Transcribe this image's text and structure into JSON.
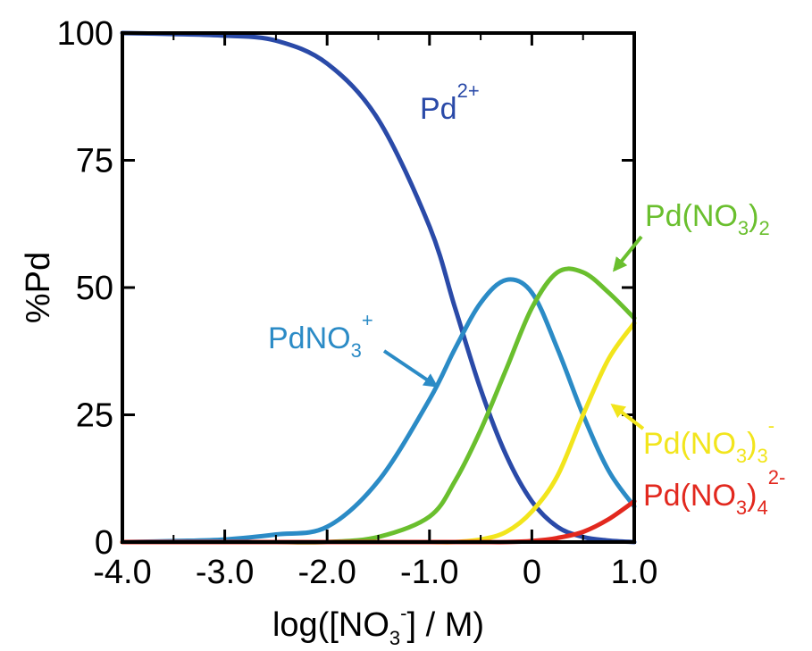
{
  "chart_data": {
    "type": "line",
    "title": "",
    "xlabel": {
      "main": "log([NO",
      "sub": "3",
      "sup": "-",
      "rest": "] / M)"
    },
    "ylabel": "%Pd",
    "xlim": [
      -4.0,
      1.0
    ],
    "ylim": [
      0,
      100
    ],
    "xticks": [
      -4.0,
      -3.0,
      -2.0,
      -1.0,
      0,
      1.0
    ],
    "xtick_labels": [
      "-4.0",
      "-3.0",
      "-2.0",
      "-1.0",
      "0",
      "1.0"
    ],
    "yticks": [
      0,
      25,
      50,
      75,
      100
    ],
    "ytick_labels": [
      "0",
      "25",
      "50",
      "75",
      "100"
    ],
    "grid": false,
    "legend": "inline labels",
    "x": [
      -4.0,
      -3.5,
      -3.0,
      -2.5,
      -2.0,
      -1.5,
      -1.0,
      -0.75,
      -0.5,
      -0.25,
      0.0,
      0.25,
      0.5,
      0.75,
      1.0
    ],
    "series": [
      {
        "name": "Pd2+",
        "label": {
          "main": "Pd",
          "sup": "2+"
        },
        "color": "#2a4aa8",
        "values": [
          100,
          99.8,
          99.5,
          98.5,
          94,
          83,
          62,
          46,
          30,
          17,
          8,
          3,
          1,
          0.3,
          0
        ]
      },
      {
        "name": "PdNO3+",
        "label": {
          "main": "PdNO",
          "sub": "3",
          "sup": "+"
        },
        "color": "#2b8bc6",
        "values": [
          0,
          0.2,
          0.5,
          1.5,
          3,
          12,
          28,
          38,
          47,
          51.5,
          49,
          38,
          25,
          14,
          7
        ]
      },
      {
        "name": "Pd(NO3)2",
        "label": {
          "main": "Pd(NO",
          "sub": "3",
          "rest": ")",
          "sub2": "2"
        },
        "color": "#6abf2e",
        "values": [
          0,
          0,
          0,
          0,
          0,
          1,
          5,
          12,
          22,
          34,
          46,
          53,
          53,
          49,
          44
        ]
      },
      {
        "name": "Pd(NO3)3-",
        "label": {
          "main": "Pd(NO",
          "sub": "3",
          "rest": ")",
          "sub2": "3",
          "sup": "-"
        },
        "color": "#f2e51c",
        "values": [
          0,
          0,
          0,
          0,
          0,
          0,
          0,
          0,
          0.5,
          2,
          6,
          13,
          25,
          36,
          43
        ]
      },
      {
        "name": "Pd(NO3)42-",
        "label": {
          "main": "Pd(NO",
          "sub": "3",
          "rest": ")",
          "sub2": "4",
          "sup": "2-"
        },
        "color": "#e2281e",
        "values": [
          0,
          0,
          0,
          0,
          0,
          0,
          0,
          0,
          0,
          0,
          0.2,
          0.8,
          2,
          4.5,
          8
        ]
      }
    ]
  }
}
